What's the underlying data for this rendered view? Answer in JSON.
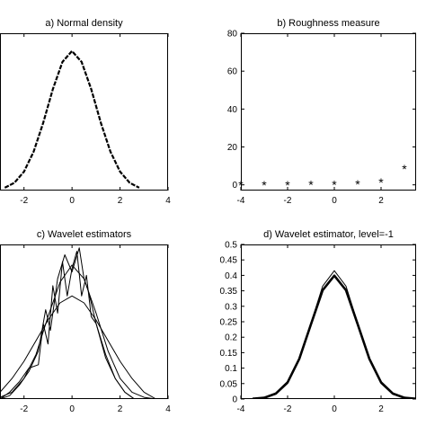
{
  "chart_data": [
    {
      "id": "a",
      "type": "line",
      "title": "a) Normal density",
      "xlim": [
        -3,
        4
      ],
      "xticks": [
        "-2",
        "0",
        "2",
        "4"
      ],
      "ylim": [
        0,
        0.45
      ],
      "yticks": [],
      "series": [
        {
          "style": "dotted-curve",
          "x": [
            -2.8,
            -2.4,
            -2.0,
            -1.6,
            -1.2,
            -0.8,
            -0.4,
            0.0,
            0.4,
            0.8,
            1.2,
            1.6,
            2.0,
            2.4,
            2.8
          ],
          "y": [
            0.008,
            0.022,
            0.054,
            0.111,
            0.194,
            0.29,
            0.368,
            0.399,
            0.368,
            0.29,
            0.194,
            0.111,
            0.054,
            0.022,
            0.008
          ]
        }
      ]
    },
    {
      "id": "b",
      "type": "scatter",
      "title": "b) Roughness measure",
      "xlim": [
        -4,
        3.5
      ],
      "xticks": [
        "-4",
        "-2",
        "0",
        "2"
      ],
      "ylim": [
        -3,
        80
      ],
      "yticks": [
        "0",
        "20",
        "40",
        "60",
        "80"
      ],
      "series": [
        {
          "marker": "*",
          "x": [
            -4,
            -3,
            -2,
            -1,
            0,
            1,
            2,
            3
          ],
          "y": [
            0.3,
            0.3,
            0.4,
            0.5,
            0.6,
            0.9,
            1.8,
            8.8
          ]
        }
      ]
    },
    {
      "id": "c",
      "type": "line",
      "title": "c) Wavelet estimators",
      "xlim": [
        -3,
        4
      ],
      "xticks": [
        "-2",
        "0",
        "2",
        "4"
      ],
      "ylim": [
        0,
        0.45
      ],
      "yticks": [],
      "series": [
        {
          "style": "solid",
          "x": [
            -3,
            -2.5,
            -2,
            -1.5,
            -1,
            -0.5,
            0,
            0.5,
            1,
            1.5,
            2,
            2.5,
            3,
            3.5
          ],
          "y": [
            0.02,
            0.06,
            0.11,
            0.17,
            0.23,
            0.28,
            0.3,
            0.28,
            0.23,
            0.17,
            0.11,
            0.06,
            0.02,
            0.0
          ]
        },
        {
          "style": "solid",
          "x": [
            -3,
            -2.5,
            -2,
            -1.5,
            -1,
            -0.5,
            0,
            0.5,
            1,
            1.5,
            2,
            2.5,
            3,
            3.5
          ],
          "y": [
            0.005,
            0.02,
            0.06,
            0.13,
            0.24,
            0.34,
            0.39,
            0.35,
            0.25,
            0.14,
            0.06,
            0.02,
            0.005,
            0.0
          ]
        },
        {
          "style": "solid",
          "x": [
            -3,
            -2.6,
            -2.2,
            -1.8,
            -1.4,
            -1.2,
            -1.0,
            -0.8,
            -0.6,
            -0.4,
            -0.2,
            0.0,
            0.2,
            0.4,
            0.6,
            0.8,
            1.0,
            1.4,
            1.8,
            2.2,
            2.6,
            3.0
          ],
          "y": [
            0.0,
            0.02,
            0.05,
            0.09,
            0.1,
            0.22,
            0.16,
            0.33,
            0.25,
            0.4,
            0.3,
            0.38,
            0.43,
            0.3,
            0.36,
            0.24,
            0.22,
            0.12,
            0.06,
            0.02,
            0.0,
            0.0
          ]
        },
        {
          "style": "solid",
          "x": [
            -3,
            -2.6,
            -2.2,
            -1.8,
            -1.4,
            -1.1,
            -0.9,
            -0.6,
            -0.3,
            0.0,
            0.3,
            0.5,
            0.7,
            1.0,
            1.4,
            1.8,
            2.2,
            2.6,
            3.0
          ],
          "y": [
            0.0,
            0.01,
            0.04,
            0.08,
            0.14,
            0.26,
            0.2,
            0.35,
            0.42,
            0.37,
            0.44,
            0.35,
            0.31,
            0.22,
            0.13,
            0.06,
            0.02,
            0.0,
            0.0
          ]
        }
      ]
    },
    {
      "id": "d",
      "type": "line",
      "title": "d) Wavelet estimator, level=-1",
      "xlim": [
        -4,
        3.5
      ],
      "xticks": [
        "-4",
        "-2",
        "0",
        "2"
      ],
      "ylim": [
        0,
        0.5
      ],
      "yticks": [
        "0",
        "0.05",
        "0.1",
        "0.15",
        "0.2",
        "0.25",
        "0.3",
        "0.35",
        "0.4",
        "0.45",
        "0.5"
      ],
      "series": [
        {
          "style": "thick",
          "x": [
            -3.5,
            -3,
            -2.5,
            -2,
            -1.5,
            -1,
            -0.5,
            0,
            0.5,
            1,
            1.5,
            2,
            2.5,
            3,
            3.5
          ],
          "y": [
            0.001,
            0.004,
            0.018,
            0.054,
            0.13,
            0.242,
            0.352,
            0.399,
            0.352,
            0.242,
            0.13,
            0.054,
            0.018,
            0.004,
            0.001
          ]
        },
        {
          "style": "solid",
          "x": [
            -3.5,
            -3,
            -2.5,
            -2,
            -1.5,
            -1,
            -0.5,
            0,
            0.5,
            1,
            1.5,
            2,
            2.5,
            3,
            3.5
          ],
          "y": [
            0.0,
            0.003,
            0.015,
            0.05,
            0.128,
            0.245,
            0.365,
            0.415,
            0.365,
            0.245,
            0.128,
            0.05,
            0.015,
            0.003,
            0.0
          ]
        }
      ]
    }
  ]
}
